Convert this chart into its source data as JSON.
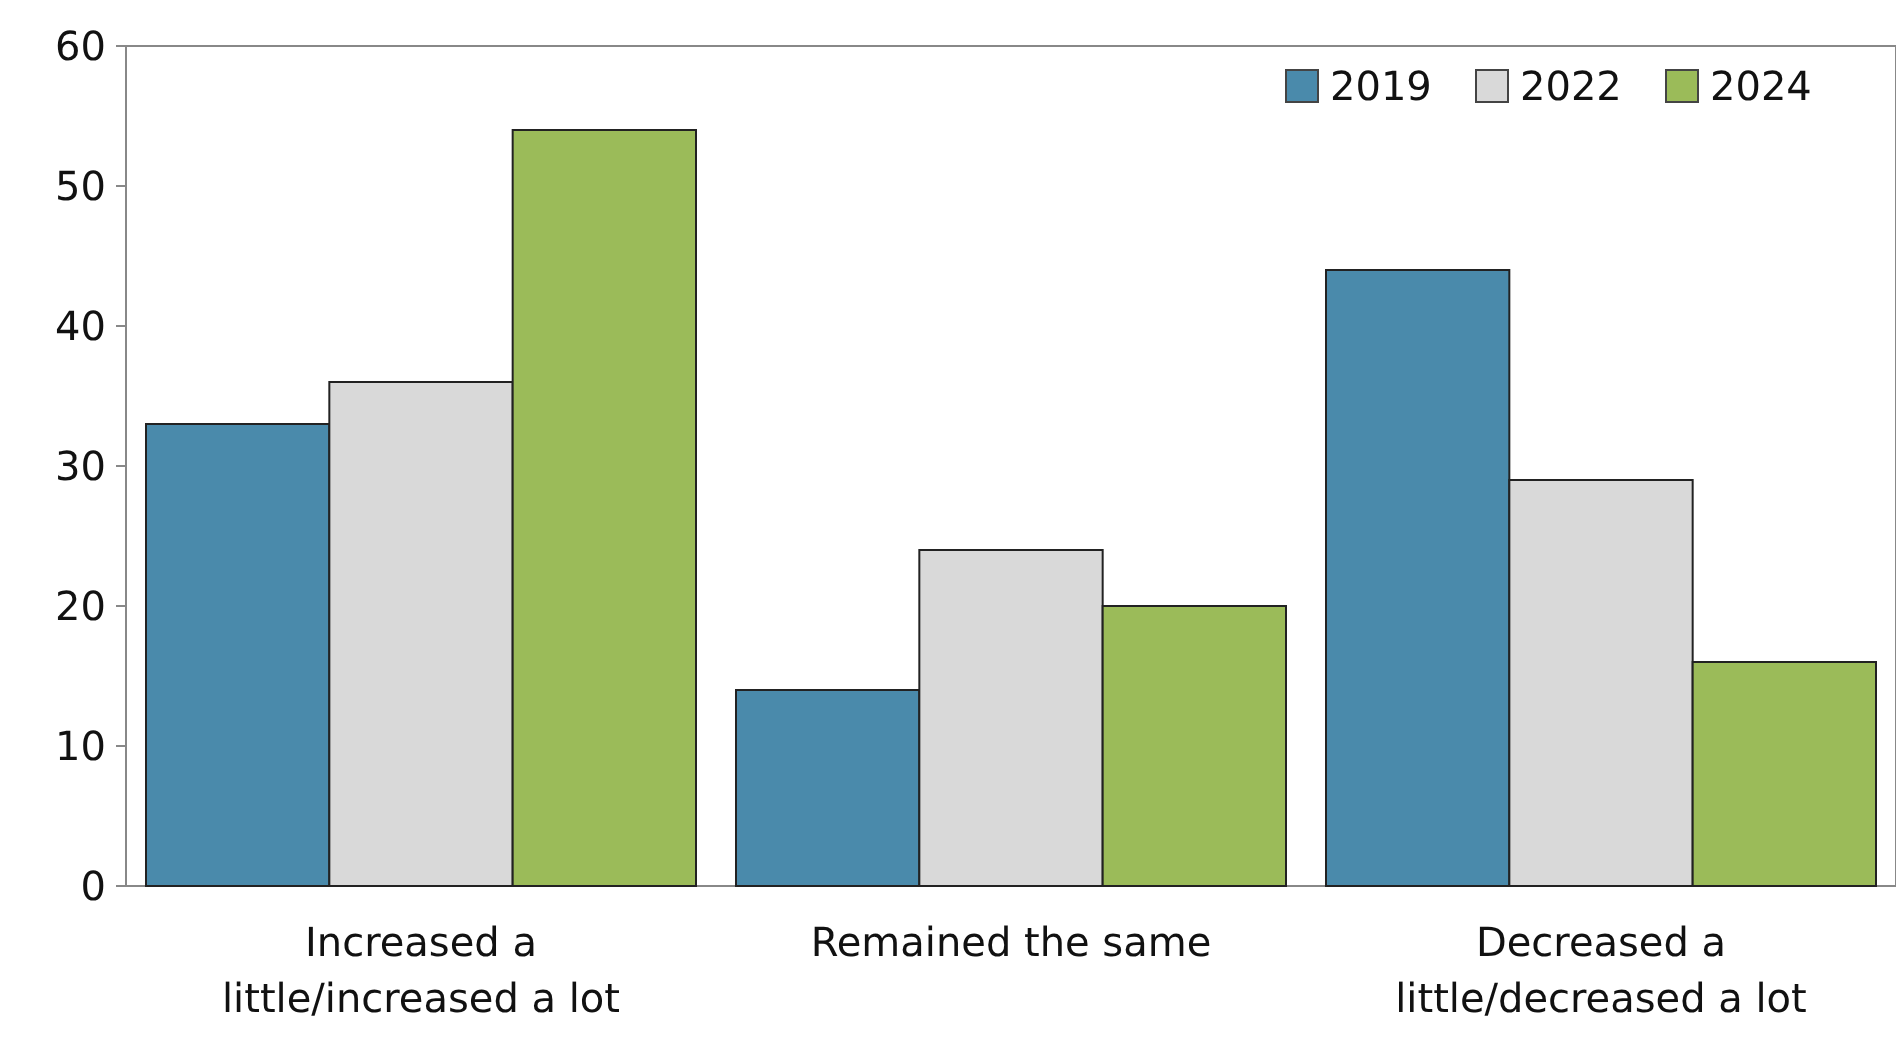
{
  "chart_data": {
    "type": "bar",
    "categories": [
      "Increased a little/increased a lot",
      "Remained the same",
      "Decreased a little/decreased a lot"
    ],
    "series": [
      {
        "name": "2019",
        "color": "#4a8aab",
        "values": [
          33,
          14,
          44
        ]
      },
      {
        "name": "2022",
        "color": "#d9d9d9",
        "values": [
          36,
          24,
          29
        ]
      },
      {
        "name": "2024",
        "color": "#9bbb59",
        "values": [
          54,
          20,
          16
        ]
      }
    ],
    "ylim": [
      0,
      60
    ],
    "yticks": [
      0,
      10,
      20,
      30,
      40,
      50,
      60
    ],
    "grid": false,
    "legend": "top right"
  }
}
